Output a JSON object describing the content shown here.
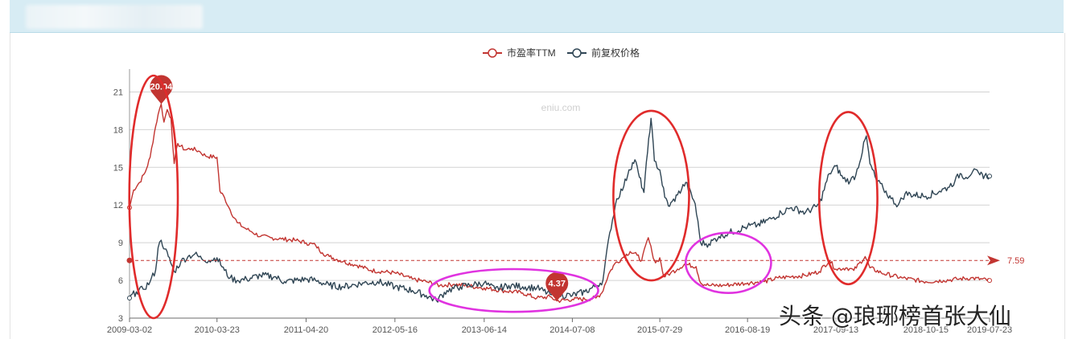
{
  "chart_data": {
    "type": "line",
    "watermark_site": "eniu.com",
    "x_ticks": [
      "2009-03-02",
      "2010-03-23",
      "2011-04-20",
      "2012-05-16",
      "2013-06-14",
      "2014-07-08",
      "2015-07-29",
      "2016-08-19",
      "2017-09-13",
      "2018-10-15",
      "2019-07-23"
    ],
    "y_ticks": [
      3,
      6,
      9,
      12,
      15,
      18,
      21
    ],
    "ylim": [
      3,
      22.5
    ],
    "xlim": [
      "2009-03-02",
      "2019-07-23"
    ],
    "grid": "horizontal",
    "legend_position": "top-center",
    "series": [
      {
        "name": "市盈率TTM",
        "color": "#c23531",
        "points": [
          [
            "2009-03-02",
            11.8
          ],
          [
            "2009-03-20",
            13.2
          ],
          [
            "2009-04-15",
            13.8
          ],
          [
            "2009-05-10",
            14.6
          ],
          [
            "2009-06-01",
            15.8
          ],
          [
            "2009-06-20",
            17.8
          ],
          [
            "2009-07-06",
            19.2
          ],
          [
            "2009-07-20",
            20.04
          ],
          [
            "2009-08-01",
            18.6
          ],
          [
            "2009-08-15",
            19.6
          ],
          [
            "2009-09-01",
            18.9
          ],
          [
            "2009-09-15",
            15.3
          ],
          [
            "2009-10-01",
            16.9
          ],
          [
            "2009-11-01",
            16.4
          ],
          [
            "2009-12-01",
            16.5
          ],
          [
            "2010-01-01",
            16.3
          ],
          [
            "2010-02-01",
            15.9
          ],
          [
            "2010-03-23",
            15.8
          ],
          [
            "2010-04-05",
            13.1
          ],
          [
            "2010-04-25",
            12.6
          ],
          [
            "2010-05-20",
            11.6
          ],
          [
            "2010-06-20",
            10.6
          ],
          [
            "2010-07-20",
            10.2
          ],
          [
            "2010-08-20",
            9.9
          ],
          [
            "2010-10-01",
            9.5
          ],
          [
            "2010-11-15",
            9.4
          ],
          [
            "2011-01-01",
            9.3
          ],
          [
            "2011-03-01",
            9.2
          ],
          [
            "2011-04-20",
            9.0
          ],
          [
            "2011-06-01",
            8.8
          ],
          [
            "2011-07-01",
            8.2
          ],
          [
            "2011-08-01",
            7.9
          ],
          [
            "2011-10-01",
            7.5
          ],
          [
            "2011-12-01",
            7.2
          ],
          [
            "2012-02-01",
            6.8
          ],
          [
            "2012-05-16",
            6.6
          ],
          [
            "2012-08-01",
            6.1
          ],
          [
            "2012-10-01",
            5.9
          ],
          [
            "2012-12-01",
            5.6
          ],
          [
            "2013-02-01",
            5.7
          ],
          [
            "2013-06-14",
            5.4
          ],
          [
            "2013-09-01",
            5.2
          ],
          [
            "2013-12-01",
            5.0
          ],
          [
            "2014-02-01",
            4.6
          ],
          [
            "2014-04-01",
            4.7
          ],
          [
            "2014-05-01",
            4.37
          ],
          [
            "2014-07-08",
            4.5
          ],
          [
            "2014-09-01",
            4.5
          ],
          [
            "2014-10-20",
            4.6
          ],
          [
            "2014-11-15",
            5.0
          ],
          [
            "2014-12-15",
            6.5
          ],
          [
            "2015-01-10",
            7.3
          ],
          [
            "2015-02-15",
            7.8
          ],
          [
            "2015-03-20",
            8.3
          ],
          [
            "2015-04-20",
            8.0
          ],
          [
            "2015-05-10",
            7.6
          ],
          [
            "2015-06-08",
            9.4
          ],
          [
            "2015-06-25",
            8.2
          ],
          [
            "2015-07-10",
            7.4
          ],
          [
            "2015-07-29",
            7.8
          ],
          [
            "2015-08-15",
            6.3
          ],
          [
            "2015-09-15",
            6.6
          ],
          [
            "2015-10-15",
            6.9
          ],
          [
            "2015-11-15",
            7.3
          ],
          [
            "2016-01-05",
            7.1
          ],
          [
            "2016-01-25",
            5.8
          ],
          [
            "2016-03-01",
            5.6
          ],
          [
            "2016-05-01",
            5.6
          ],
          [
            "2016-08-19",
            5.8
          ],
          [
            "2016-11-01",
            5.9
          ],
          [
            "2017-01-01",
            6.2
          ],
          [
            "2017-03-01",
            6.3
          ],
          [
            "2017-05-01",
            6.4
          ],
          [
            "2017-07-01",
            6.7
          ],
          [
            "2017-08-15",
            7.6
          ],
          [
            "2017-09-13",
            6.9
          ],
          [
            "2017-11-01",
            7.0
          ],
          [
            "2017-12-01",
            6.8
          ],
          [
            "2018-01-20",
            7.9
          ],
          [
            "2018-02-10",
            7.0
          ],
          [
            "2018-04-01",
            6.6
          ],
          [
            "2018-07-01",
            6.2
          ],
          [
            "2018-10-15",
            5.9
          ],
          [
            "2019-01-01",
            6.0
          ],
          [
            "2019-03-01",
            6.1
          ],
          [
            "2019-05-01",
            6.2
          ],
          [
            "2019-07-23",
            6.0
          ]
        ]
      },
      {
        "name": "前复权价格",
        "color": "#2f4554",
        "points": [
          [
            "2009-03-02",
            4.6
          ],
          [
            "2009-04-01",
            5.1
          ],
          [
            "2009-05-01",
            5.3
          ],
          [
            "2009-06-01",
            5.9
          ],
          [
            "2009-06-25",
            6.8
          ],
          [
            "2009-07-06",
            8.6
          ],
          [
            "2009-07-20",
            9.2
          ],
          [
            "2009-08-05",
            8.5
          ],
          [
            "2009-08-20",
            7.9
          ],
          [
            "2009-09-15",
            6.7
          ],
          [
            "2009-10-15",
            7.5
          ],
          [
            "2009-11-15",
            7.9
          ],
          [
            "2009-12-15",
            8.1
          ],
          [
            "2010-01-15",
            7.7
          ],
          [
            "2010-02-15",
            7.6
          ],
          [
            "2010-03-23",
            7.8
          ],
          [
            "2010-04-25",
            6.8
          ],
          [
            "2010-05-20",
            6.2
          ],
          [
            "2010-06-20",
            6.0
          ],
          [
            "2010-08-01",
            6.1
          ],
          [
            "2010-10-01",
            6.4
          ],
          [
            "2010-12-01",
            6.3
          ],
          [
            "2011-01-15",
            5.9
          ],
          [
            "2011-04-20",
            6.1
          ],
          [
            "2011-06-01",
            6.0
          ],
          [
            "2011-08-01",
            5.6
          ],
          [
            "2011-10-01",
            5.5
          ],
          [
            "2012-01-01",
            5.8
          ],
          [
            "2012-03-01",
            5.9
          ],
          [
            "2012-05-16",
            5.5
          ],
          [
            "2012-08-01",
            5.2
          ],
          [
            "2012-10-01",
            4.8
          ],
          [
            "2012-11-15",
            4.4
          ],
          [
            "2013-01-01",
            5.2
          ],
          [
            "2013-03-01",
            5.5
          ],
          [
            "2013-06-14",
            5.8
          ],
          [
            "2013-08-01",
            5.3
          ],
          [
            "2013-10-01",
            5.6
          ],
          [
            "2013-12-01",
            5.5
          ],
          [
            "2014-02-01",
            5.4
          ],
          [
            "2014-04-01",
            4.9
          ],
          [
            "2014-07-08",
            4.8
          ],
          [
            "2014-09-01",
            5.1
          ],
          [
            "2014-10-15",
            5.5
          ],
          [
            "2014-11-20",
            6.0
          ],
          [
            "2014-12-20",
            9.8
          ],
          [
            "2015-01-20",
            12.5
          ],
          [
            "2015-02-20",
            13.5
          ],
          [
            "2015-03-15",
            14.8
          ],
          [
            "2015-04-10",
            15.6
          ],
          [
            "2015-04-30",
            14.2
          ],
          [
            "2015-05-20",
            13.0
          ],
          [
            "2015-06-10",
            17.3
          ],
          [
            "2015-06-20",
            18.9
          ],
          [
            "2015-07-05",
            15.5
          ],
          [
            "2015-07-29",
            14.8
          ],
          [
            "2015-08-20",
            12.6
          ],
          [
            "2015-09-10",
            11.9
          ],
          [
            "2015-10-15",
            12.8
          ],
          [
            "2015-11-20",
            13.8
          ],
          [
            "2016-01-01",
            12.1
          ],
          [
            "2016-01-25",
            9.0
          ],
          [
            "2016-03-01",
            8.9
          ],
          [
            "2016-04-15",
            9.5
          ],
          [
            "2016-06-01",
            9.8
          ],
          [
            "2016-08-19",
            10.3
          ],
          [
            "2016-10-01",
            10.4
          ],
          [
            "2016-12-01",
            10.9
          ],
          [
            "2017-01-15",
            11.4
          ],
          [
            "2017-03-01",
            11.8
          ],
          [
            "2017-05-01",
            11.4
          ],
          [
            "2017-07-01",
            12.0
          ],
          [
            "2017-08-15",
            14.5
          ],
          [
            "2017-09-13",
            15.1
          ],
          [
            "2017-10-15",
            14.1
          ],
          [
            "2017-11-15",
            13.9
          ],
          [
            "2017-12-10",
            14.4
          ],
          [
            "2018-01-25",
            17.5
          ],
          [
            "2018-02-10",
            15.3
          ],
          [
            "2018-03-10",
            14.0
          ],
          [
            "2018-04-10",
            13.3
          ],
          [
            "2018-05-15",
            12.5
          ],
          [
            "2018-06-15",
            12.0
          ],
          [
            "2018-07-15",
            12.9
          ],
          [
            "2018-10-15",
            12.7
          ],
          [
            "2018-12-15",
            13.1
          ],
          [
            "2019-01-20",
            13.4
          ],
          [
            "2019-02-20",
            13.9
          ],
          [
            "2019-03-15",
            14.5
          ],
          [
            "2019-04-10",
            14.2
          ],
          [
            "2019-05-10",
            14.7
          ],
          [
            "2019-06-10",
            14.4
          ],
          [
            "2019-07-23",
            14.3
          ]
        ]
      }
    ],
    "mark_points": [
      {
        "series": "市盈率TTM",
        "date": "2009-07-20",
        "value": 20.04,
        "label": "20.04"
      },
      {
        "series": "市盈率TTM",
        "date": "2014-05-01",
        "value": 4.37,
        "label": "4.37"
      }
    ],
    "mark_line": {
      "series": "市盈率TTM",
      "value": 7.59,
      "label": "7.59",
      "style": "dashed"
    },
    "annotations": [
      {
        "shape": "ellipse",
        "color": "#e02b2b",
        "from": "2009-03-01",
        "to": "2009-10-01",
        "ymin": 3.0,
        "ymax": 22.3
      },
      {
        "shape": "ellipse",
        "color": "#e02b2b",
        "from": "2015-01-05",
        "to": "2015-12-05",
        "ymin": 6.0,
        "ymax": 19.5
      },
      {
        "shape": "ellipse",
        "color": "#e02b2b",
        "from": "2017-07-01",
        "to": "2018-03-15",
        "ymin": 5.7,
        "ymax": 19.4
      },
      {
        "shape": "ellipse",
        "color": "#e033e0",
        "from": "2012-10-15",
        "to": "2014-10-30",
        "ymin": 3.5,
        "ymax": 6.9
      },
      {
        "shape": "ellipse",
        "color": "#e033e0",
        "from": "2015-11-20",
        "to": "2016-12-01",
        "ymin": 5.0,
        "ymax": 9.8
      }
    ]
  },
  "watermark": {
    "text": "头条 @琅琊榜首张大仙"
  }
}
